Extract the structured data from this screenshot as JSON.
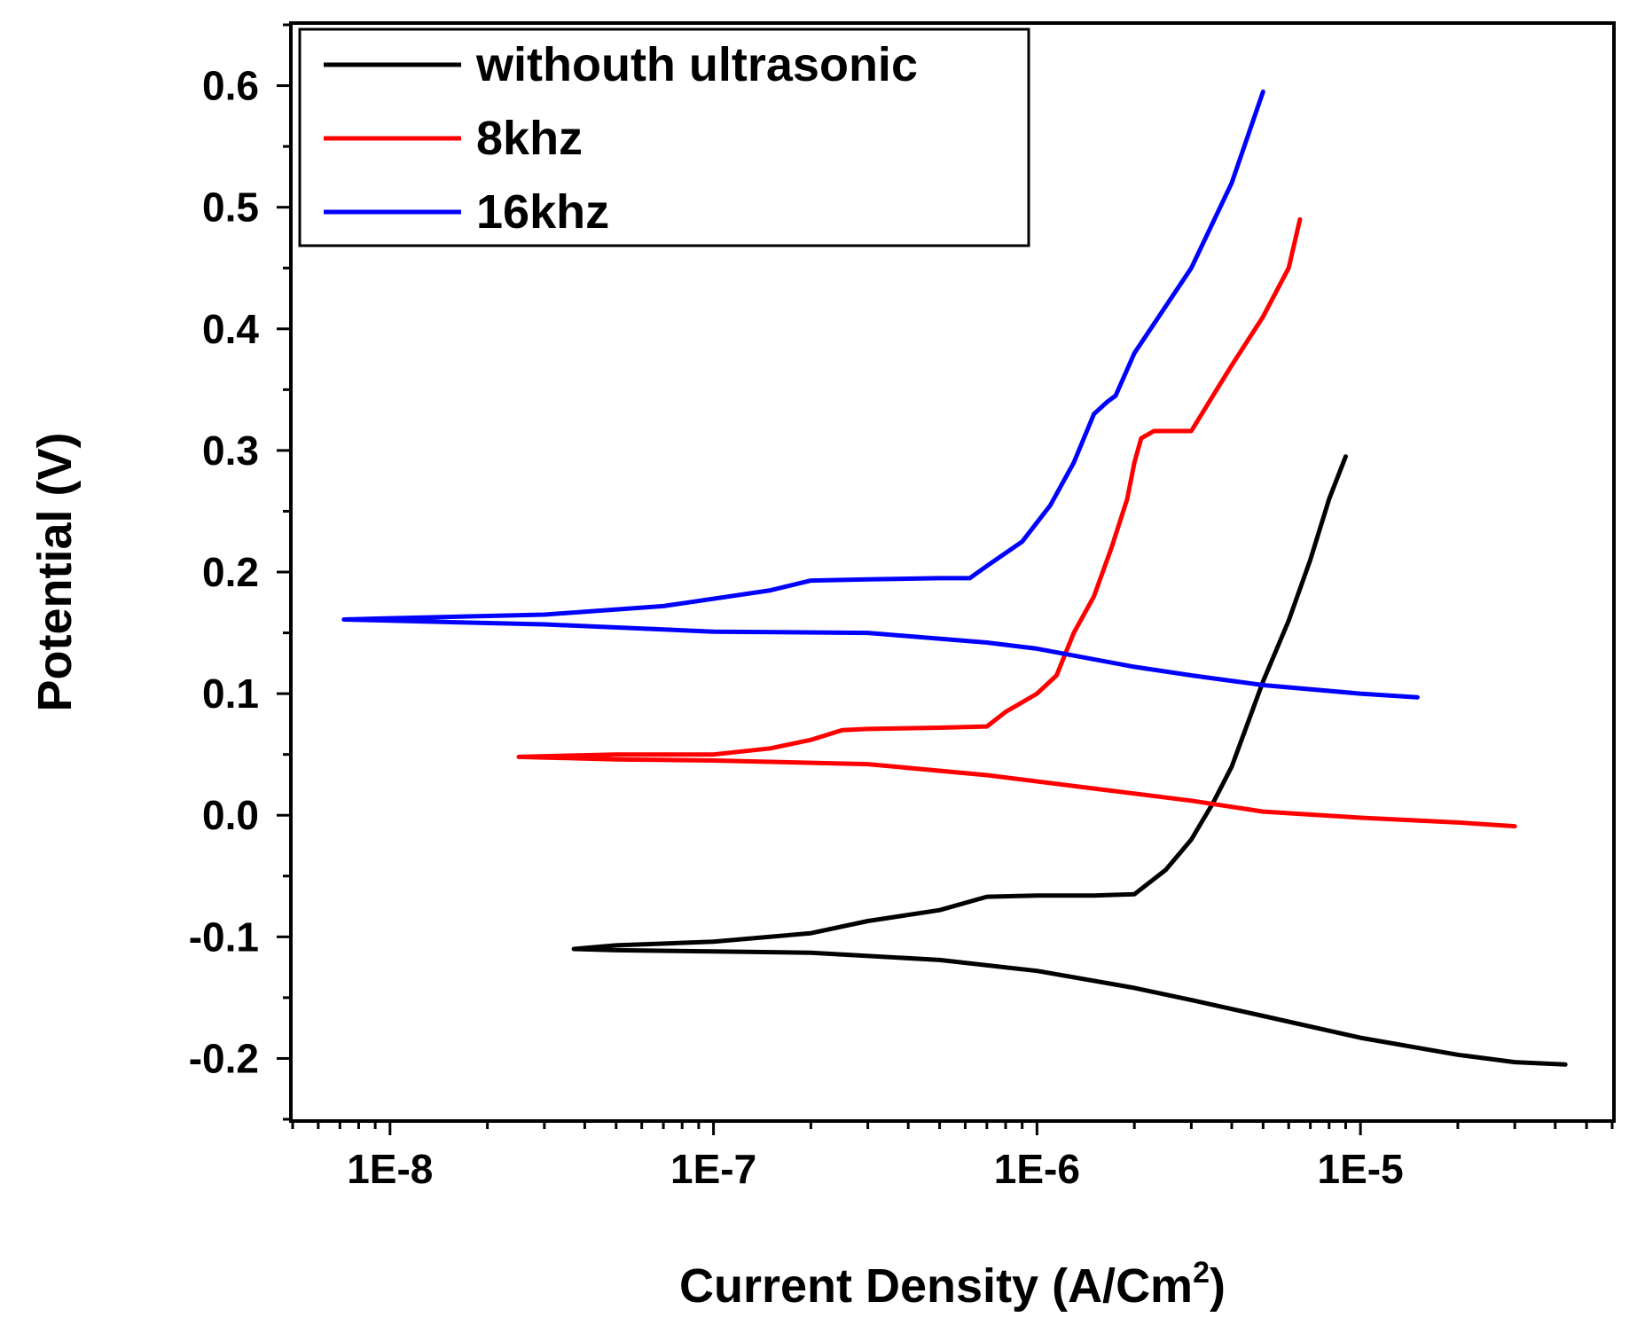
{
  "chart_data": {
    "type": "line",
    "title": "",
    "xlabel": "Current Density (A/Cm",
    "xlabel_sup": "2",
    "xlabel_close": ")",
    "ylabel": "Potential (V)",
    "xscale": "log",
    "xlim": [
      5e-09,
      6e-05
    ],
    "ylim": [
      -0.25,
      0.65
    ],
    "xticks": [
      {
        "value": 1e-08,
        "label": "1E-8"
      },
      {
        "value": 1e-07,
        "label": "1E-7"
      },
      {
        "value": 1e-06,
        "label": "1E-6"
      },
      {
        "value": 1e-05,
        "label": "1E-5"
      }
    ],
    "yticks": [
      {
        "value": -0.2,
        "label": "-0.2"
      },
      {
        "value": -0.1,
        "label": "-0.1"
      },
      {
        "value": 0.0,
        "label": "0.0"
      },
      {
        "value": 0.1,
        "label": "0.1"
      },
      {
        "value": 0.2,
        "label": "0.2"
      },
      {
        "value": 0.3,
        "label": "0.3"
      },
      {
        "value": 0.4,
        "label": "0.4"
      },
      {
        "value": 0.5,
        "label": "0.5"
      },
      {
        "value": 0.6,
        "label": "0.6"
      }
    ],
    "legend_position": "top-left",
    "series": [
      {
        "name": "withouth ultrasonic",
        "color": "#000000",
        "x": [
          4.3e-05,
          3e-05,
          2e-05,
          1e-05,
          5e-06,
          3e-06,
          2e-06,
          1e-06,
          5e-07,
          2e-07,
          1e-07,
          5e-08,
          3.7e-08,
          5e-08,
          1e-07,
          2e-07,
          3e-07,
          5e-07,
          7e-07,
          1e-06,
          1.5e-06,
          2e-06,
          2.5e-06,
          3e-06,
          3.5e-06,
          4e-06,
          5e-06,
          6e-06,
          7e-06,
          8e-06,
          9e-06
        ],
        "y": [
          -0.205,
          -0.203,
          -0.197,
          -0.183,
          -0.165,
          -0.152,
          -0.142,
          -0.128,
          -0.119,
          -0.113,
          -0.112,
          -0.111,
          -0.11,
          -0.107,
          -0.104,
          -0.097,
          -0.087,
          -0.078,
          -0.067,
          -0.066,
          -0.066,
          -0.065,
          -0.045,
          -0.02,
          0.01,
          0.04,
          0.11,
          0.16,
          0.21,
          0.26,
          0.295
        ]
      },
      {
        "name": "8khz",
        "color": "#ff0000",
        "x": [
          3e-05,
          2e-05,
          1e-05,
          5e-06,
          3e-06,
          1.5e-06,
          7e-07,
          3e-07,
          1e-07,
          5e-08,
          2.5e-08,
          5e-08,
          1e-07,
          1.5e-07,
          2e-07,
          2.5e-07,
          3e-07,
          5e-07,
          7e-07,
          8e-07,
          1e-06,
          1.15e-06,
          1.3e-06,
          1.5e-06,
          1.7e-06,
          1.9e-06,
          2e-06,
          2.1e-06,
          2.3e-06,
          3e-06,
          3.5e-06,
          4e-06,
          5e-06,
          6e-06,
          6.5e-06
        ],
        "y": [
          -0.009,
          -0.006,
          -0.002,
          0.003,
          0.012,
          0.022,
          0.033,
          0.042,
          0.045,
          0.046,
          0.048,
          0.05,
          0.05,
          0.055,
          0.062,
          0.07,
          0.071,
          0.072,
          0.073,
          0.085,
          0.1,
          0.115,
          0.15,
          0.18,
          0.22,
          0.26,
          0.29,
          0.31,
          0.316,
          0.316,
          0.345,
          0.37,
          0.41,
          0.45,
          0.49
        ]
      },
      {
        "name": "16khz",
        "color": "#0000ff",
        "x": [
          1.5e-05,
          1e-05,
          5e-06,
          3e-06,
          2e-06,
          1e-06,
          7e-07,
          3e-07,
          1e-07,
          3e-08,
          1e-08,
          7.2e-09,
          1e-08,
          3e-08,
          7e-08,
          1.5e-07,
          2e-07,
          3e-07,
          5e-07,
          6.2e-07,
          7e-07,
          9e-07,
          1.1e-06,
          1.3e-06,
          1.5e-06,
          1.65e-06,
          1.75e-06,
          2e-06,
          3e-06,
          4e-06,
          5e-06
        ],
        "y": [
          0.097,
          0.1,
          0.107,
          0.115,
          0.122,
          0.137,
          0.142,
          0.15,
          0.151,
          0.157,
          0.16,
          0.161,
          0.162,
          0.165,
          0.172,
          0.185,
          0.193,
          0.194,
          0.195,
          0.195,
          0.205,
          0.225,
          0.255,
          0.29,
          0.33,
          0.34,
          0.345,
          0.38,
          0.45,
          0.52,
          0.595
        ]
      }
    ]
  }
}
